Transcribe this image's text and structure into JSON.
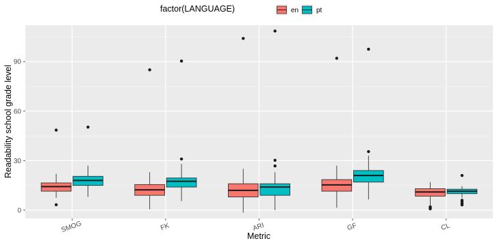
{
  "chart_data": {
    "type": "boxplot",
    "title": "",
    "xlabel": "Metric",
    "ylabel": "Readability school grade level",
    "legend": {
      "title": "factor(LANGUAGE)",
      "position": "top",
      "entries": [
        {
          "label": "en",
          "color": "#F8766D"
        },
        {
          "label": "pt",
          "color": "#00BFC4"
        }
      ]
    },
    "ylim": [
      -5,
      112
    ],
    "yticks": [
      0,
      30,
      60,
      90
    ],
    "ytick_labels": [
      "0",
      "30",
      "60",
      "90"
    ],
    "categories": [
      "SMOG",
      "FK",
      "ARI",
      "GF",
      "CL"
    ],
    "grid": true,
    "series": [
      {
        "name": "en",
        "color": "#F8766D",
        "boxes": [
          {
            "lower_whisker": 7.5,
            "q1": 11.5,
            "median": 14.3,
            "q3": 16.5,
            "upper_whisker": 22,
            "outliers": [
              48.5,
              3.3
            ]
          },
          {
            "lower_whisker": 0.5,
            "q1": 9,
            "median": 12.3,
            "q3": 15.5,
            "upper_whisker": 23,
            "outliers": [
              85
            ]
          },
          {
            "lower_whisker": -1.5,
            "q1": 8,
            "median": 12,
            "q3": 16,
            "upper_whisker": 25,
            "outliers": [
              104
            ]
          },
          {
            "lower_whisker": 1.5,
            "q1": 11.5,
            "median": 15.3,
            "q3": 18.5,
            "upper_whisker": 27,
            "outliers": [
              92
            ]
          },
          {
            "lower_whisker": 2.5,
            "q1": 8.5,
            "median": 11,
            "q3": 13,
            "upper_whisker": 17,
            "outliers": [
              2,
              1.3,
              0.8
            ]
          }
        ]
      },
      {
        "name": "pt",
        "color": "#00BFC4",
        "boxes": [
          {
            "lower_whisker": 8,
            "q1": 15,
            "median": 18,
            "q3": 20.5,
            "upper_whisker": 27,
            "outliers": [
              50.3
            ]
          },
          {
            "lower_whisker": 5.5,
            "q1": 14,
            "median": 17.5,
            "q3": 19.5,
            "upper_whisker": 28,
            "outliers": [
              90.3,
              31
            ]
          },
          {
            "lower_whisker": 0,
            "q1": 9,
            "median": 14,
            "q3": 16,
            "upper_whisker": 23,
            "outliers": [
              108.5,
              30.2,
              26.8
            ]
          },
          {
            "lower_whisker": 6.5,
            "q1": 17,
            "median": 21,
            "q3": 24,
            "upper_whisker": 33,
            "outliers": [
              97.5,
              35.5
            ]
          },
          {
            "lower_whisker": 7.5,
            "q1": 10,
            "median": 11.5,
            "q3": 12.7,
            "upper_whisker": 14.5,
            "outliers": [
              21,
              6,
              5,
              4,
              3.2
            ]
          }
        ]
      }
    ]
  }
}
